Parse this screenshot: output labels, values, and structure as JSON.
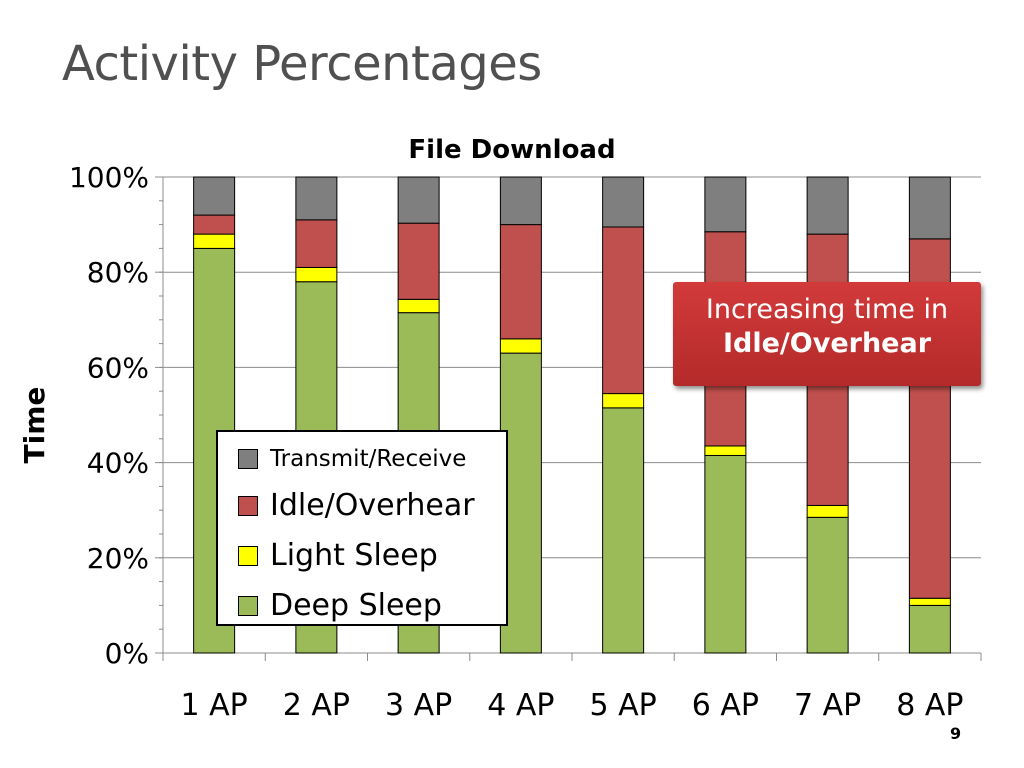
{
  "slide": {
    "title": "Activity Percentages",
    "page_number": "9"
  },
  "callout": {
    "line1": "Increasing time in",
    "line2": "Idle/Overhear",
    "color": "#c0302f"
  },
  "chart_data": {
    "type": "bar",
    "stacked": true,
    "title": "File Download",
    "xlabel": "",
    "ylabel": "Time",
    "ylim": [
      0,
      100
    ],
    "y_unit": "%",
    "yticks": [
      "0%",
      "20%",
      "40%",
      "60%",
      "80%",
      "100%"
    ],
    "grid": true,
    "legend_position": "inside-left",
    "categories": [
      "1 AP",
      "2 AP",
      "3 AP",
      "4 AP",
      "5 AP",
      "6 AP",
      "7 AP",
      "8 AP"
    ],
    "series": [
      {
        "name": "Deep Sleep",
        "color": "#9bbb59",
        "values": [
          85,
          78,
          71.5,
          63,
          51.5,
          41.5,
          28.5,
          10
        ]
      },
      {
        "name": "Light Sleep",
        "color": "#ffff00",
        "values": [
          3,
          3,
          2.8,
          3,
          3,
          2,
          2.5,
          1.5
        ]
      },
      {
        "name": "Idle/Overhear",
        "color": "#c0504d",
        "values": [
          4,
          10,
          16,
          24,
          35,
          45,
          57,
          75.5
        ]
      },
      {
        "name": "Transmit/Receive",
        "color": "#7f7f7f",
        "values": [
          8,
          9,
          9.7,
          10,
          10.5,
          11.5,
          12,
          13
        ]
      }
    ],
    "legend_order": [
      "Transmit/Receive",
      "Idle/Overhear",
      "Light Sleep",
      "Deep Sleep"
    ]
  }
}
